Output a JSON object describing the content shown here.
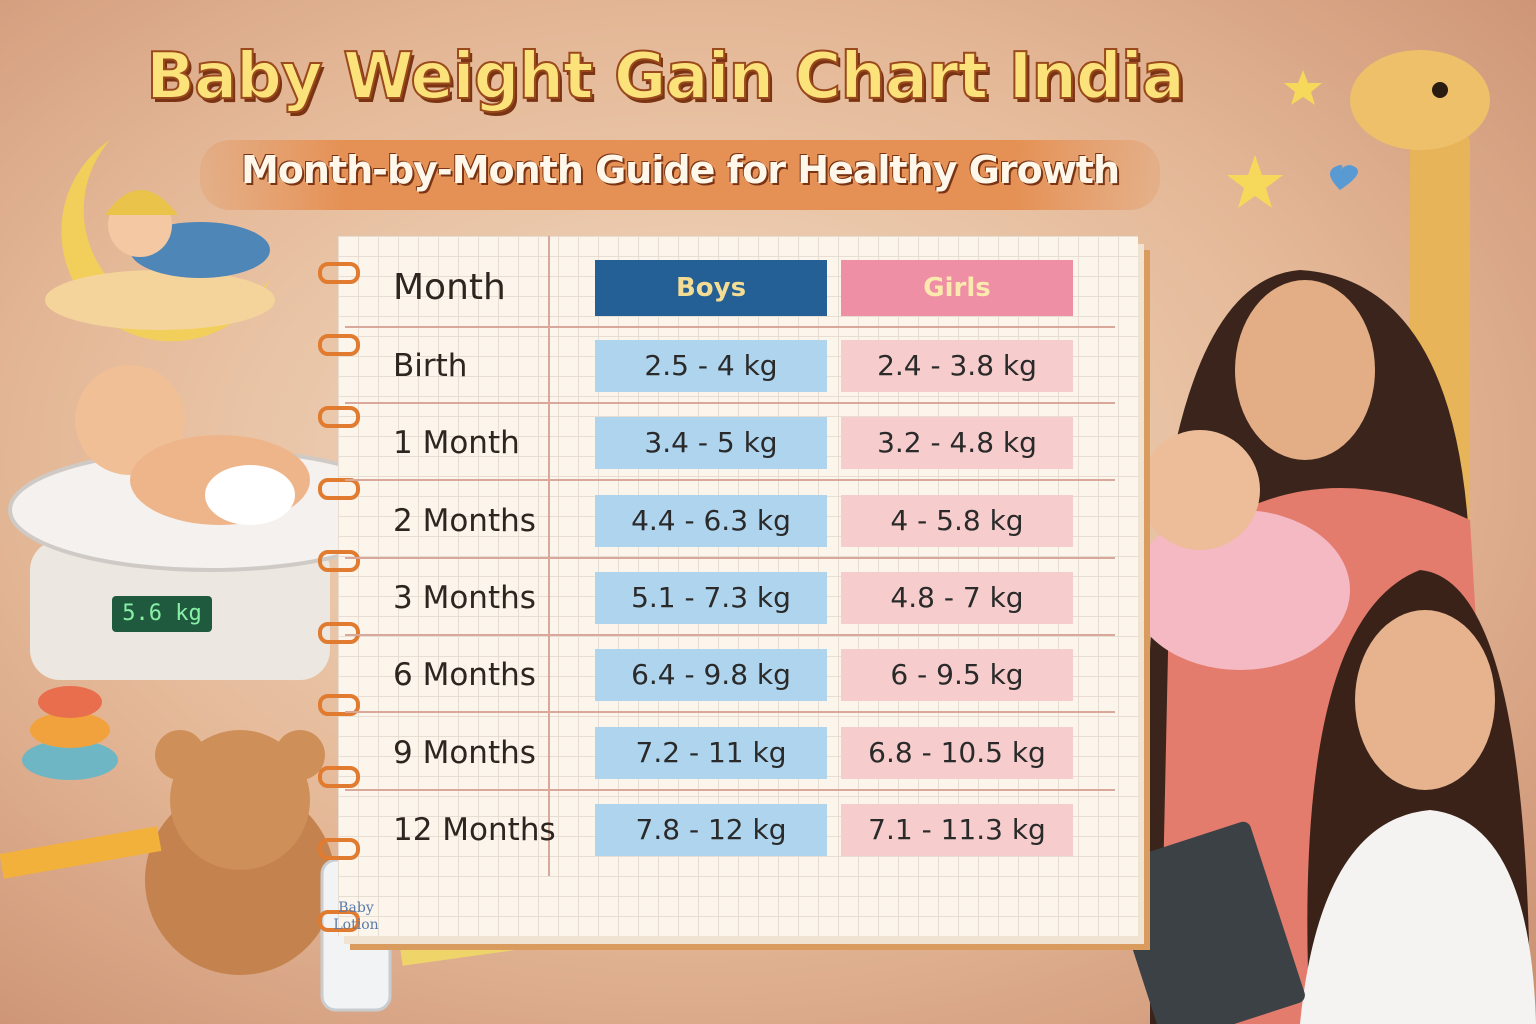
{
  "header": {
    "title": "Baby Weight Gain Chart India",
    "subtitle": "Month-by-Month Guide for Healthy Growth"
  },
  "table": {
    "headers": [
      "Month",
      "Boys",
      "Girls"
    ],
    "rows": [
      [
        "Birth",
        "2.5 - 4 kg",
        "2.4 - 3.8 kg"
      ],
      [
        "1 Month",
        "3.4 - 5 kg",
        "3.2 - 4.8 kg"
      ],
      [
        "2 Months",
        "4.4 - 6.3 kg",
        "4 - 5.8 kg"
      ],
      [
        "3 Months",
        "5.1 - 7.3 kg",
        "4.8 - 7 kg"
      ],
      [
        "6 Months",
        "6.4 - 9.8 kg",
        "6 - 9.5 kg"
      ],
      [
        "9 Months",
        "7.2 - 11 kg",
        "6.8 - 10.5 kg"
      ],
      [
        "12 Months",
        "7.8 - 12 kg",
        "7.1 - 11.3 kg"
      ]
    ]
  },
  "illustrations": {
    "scale_display": "5.6 kg",
    "lotion_label": "Baby Lotion"
  }
}
